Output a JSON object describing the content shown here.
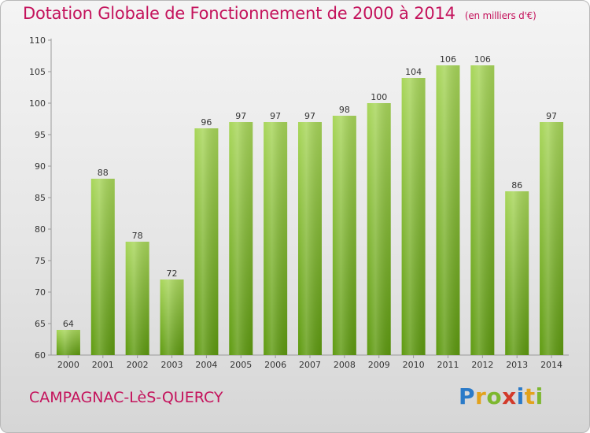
{
  "chart_data": {
    "type": "bar",
    "title": "Dotation Globale de Fonctionnement de 2000 à 2014",
    "subtitle": "(en milliers d'€)",
    "categories": [
      "2000",
      "2001",
      "2002",
      "2003",
      "2004",
      "2005",
      "2006",
      "2007",
      "2008",
      "2009",
      "2010",
      "2011",
      "2012",
      "2013",
      "2014"
    ],
    "values": [
      64,
      88,
      78,
      72,
      96,
      97,
      97,
      97,
      98,
      100,
      104,
      106,
      106,
      86,
      97
    ],
    "ylim": [
      60,
      110
    ],
    "yticks": [
      60,
      65,
      70,
      75,
      80,
      85,
      90,
      95,
      100,
      105,
      110
    ],
    "xlabel": "",
    "ylabel": "",
    "bar_color": "#7fb82a",
    "bar_color_light": "#a8d65a",
    "bar_color_dark": "#5e9a10"
  },
  "commune": "CAMPAGNAC-LèS-QUERCY",
  "logo": {
    "letters": [
      "P",
      "r",
      "o",
      "x",
      "i",
      "t",
      "i"
    ],
    "colors": [
      "#2a7ac8",
      "#e2a21c",
      "#7db72f",
      "#d23a2a",
      "#2a7ac8",
      "#e2a21c",
      "#7db72f"
    ]
  }
}
